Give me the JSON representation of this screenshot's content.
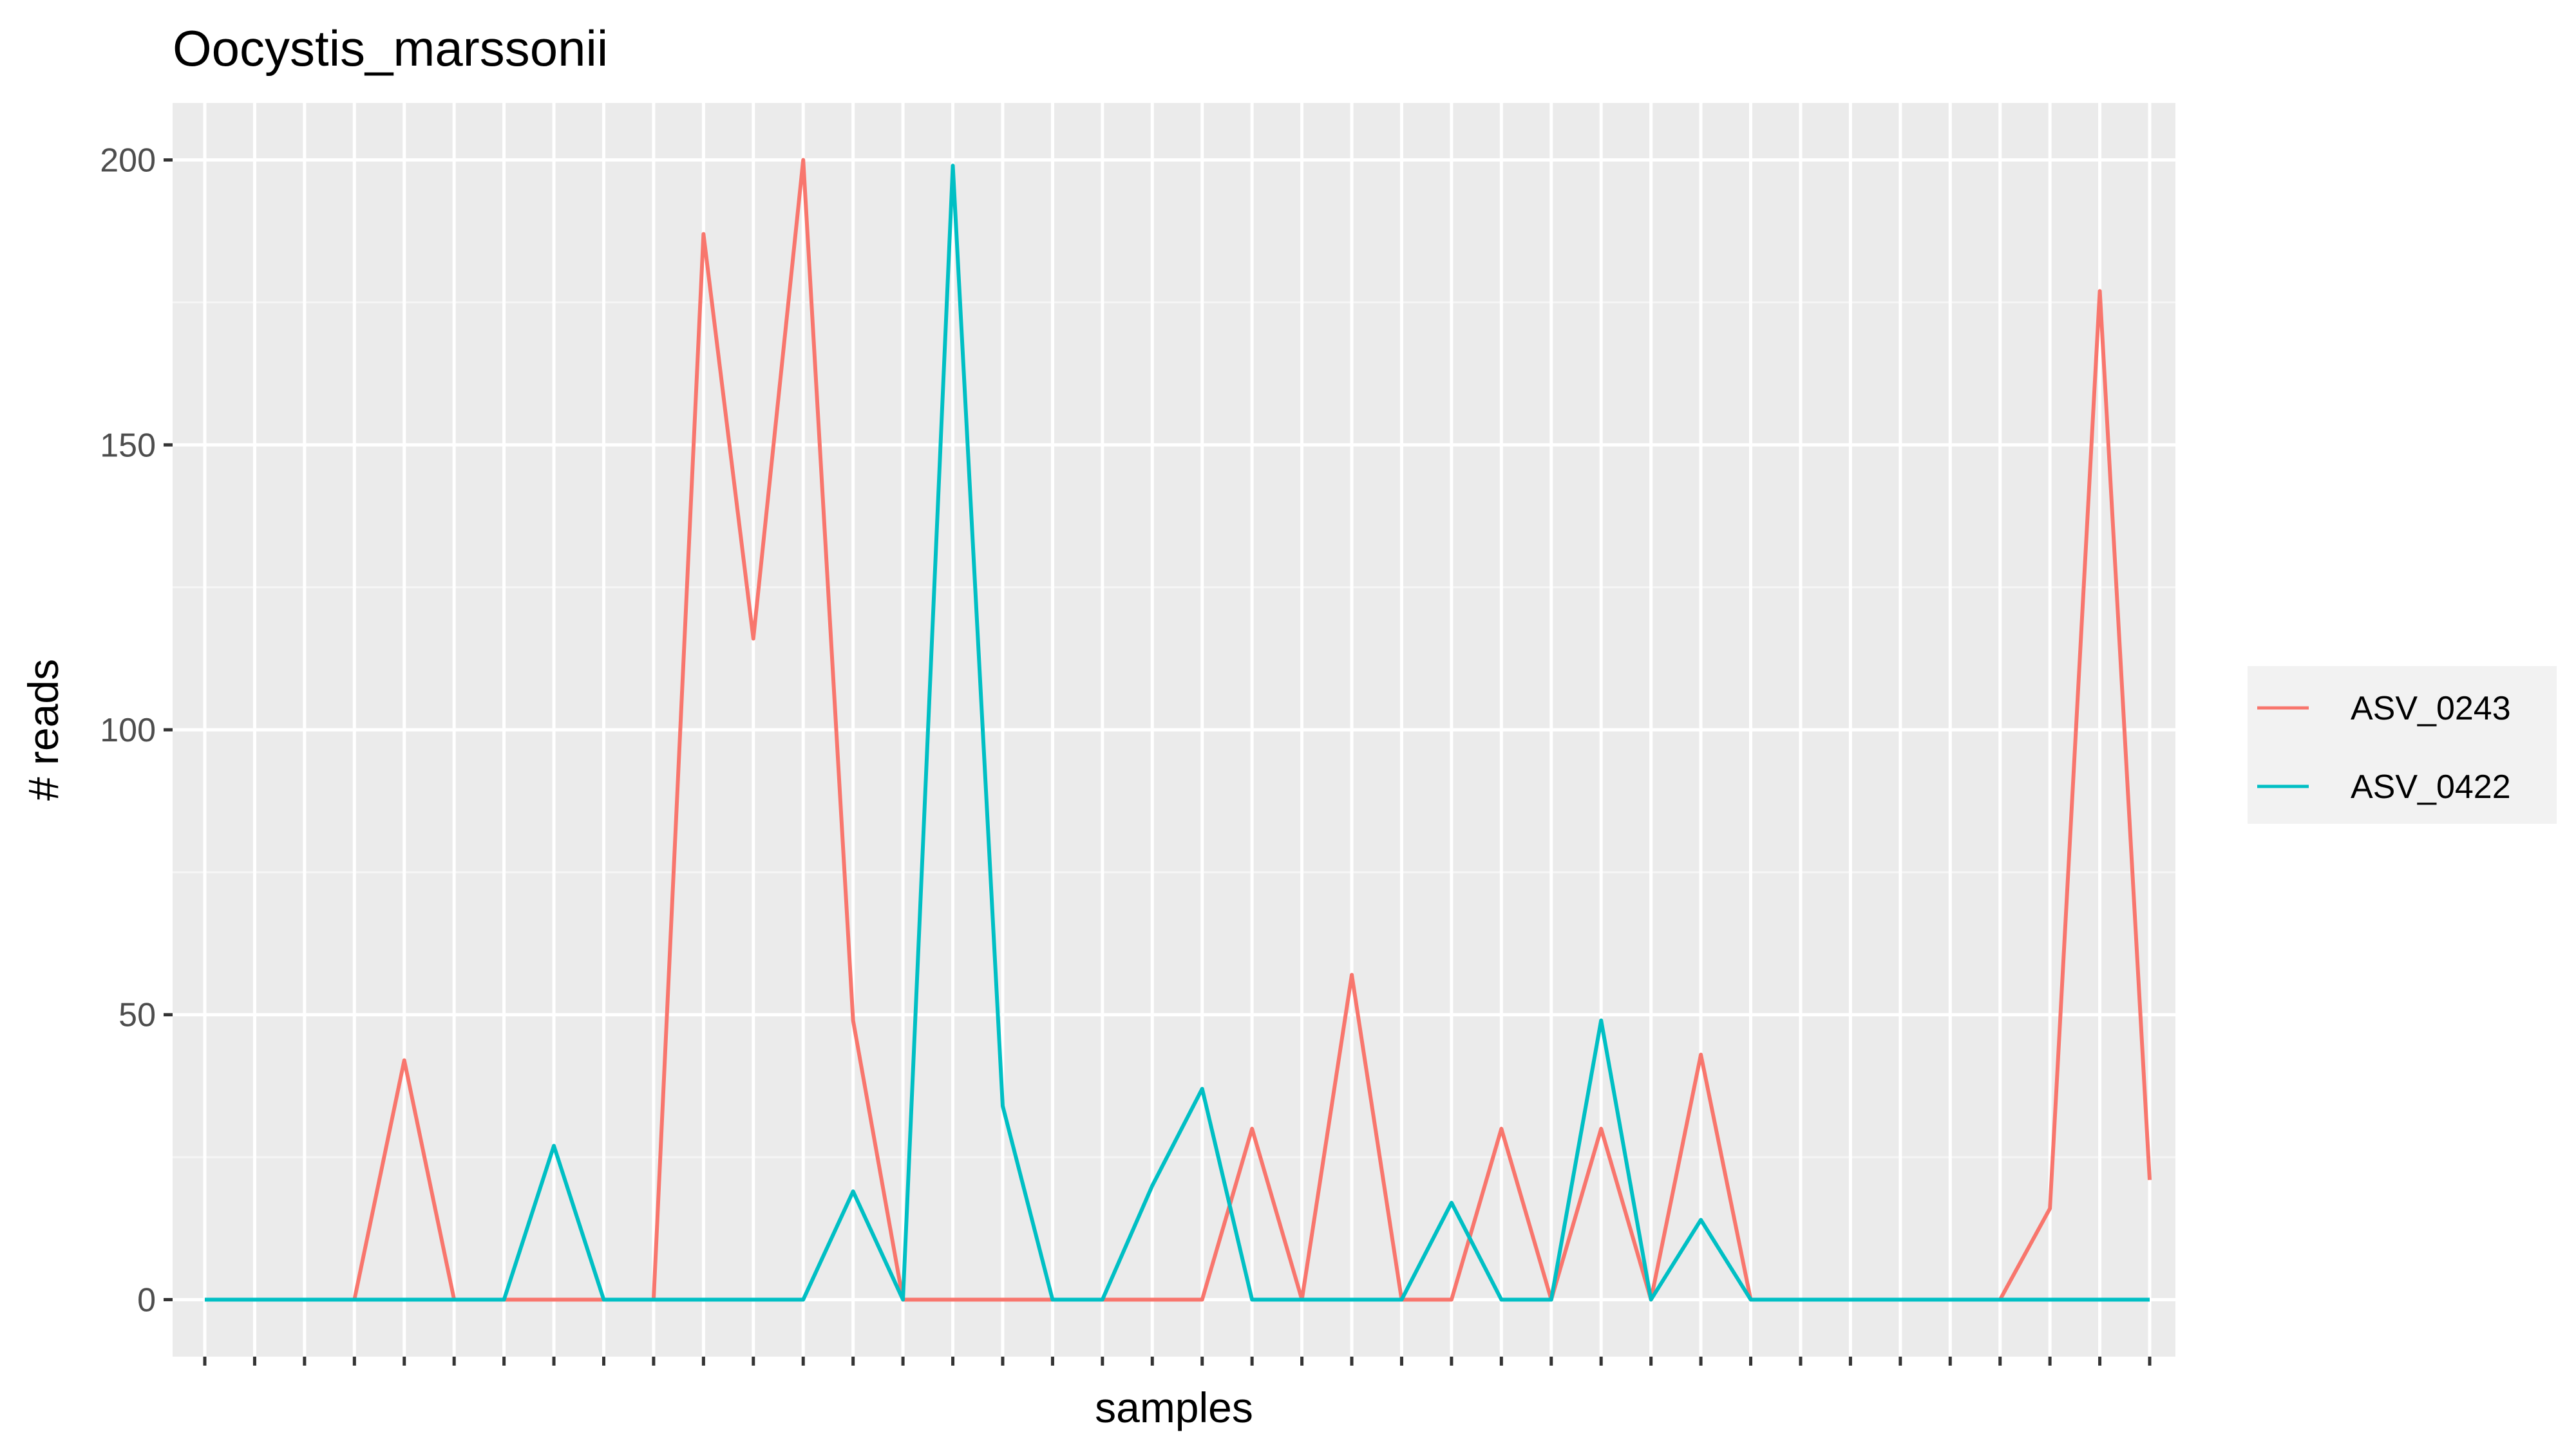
{
  "chart_data": {
    "type": "line",
    "title": "Oocystis_marssonii",
    "xlabel": "samples",
    "ylabel": "# reads",
    "ylim": [
      -10,
      210
    ],
    "yticks": [
      0,
      50,
      100,
      150,
      200
    ],
    "x_count": 40,
    "grid": true,
    "legend_position": "right",
    "series": [
      {
        "name": "ASV_0243",
        "color": "#F8766D",
        "values": [
          0,
          0,
          0,
          0,
          42,
          0,
          0,
          0,
          0,
          0,
          187,
          116,
          200,
          49,
          0,
          0,
          0,
          0,
          0,
          0,
          0,
          30,
          0,
          57,
          0,
          0,
          30,
          0,
          30,
          0,
          43,
          0,
          0,
          0,
          0,
          0,
          0,
          16,
          177,
          21
        ]
      },
      {
        "name": "ASV_0422",
        "color": "#00BFC4",
        "values": [
          0,
          0,
          0,
          0,
          0,
          0,
          0,
          27,
          0,
          0,
          0,
          0,
          0,
          19,
          0,
          199,
          34,
          0,
          0,
          20,
          37,
          0,
          0,
          0,
          0,
          17,
          0,
          0,
          49,
          0,
          14,
          0,
          0,
          0,
          0,
          0,
          0,
          0,
          0,
          0
        ]
      }
    ]
  }
}
